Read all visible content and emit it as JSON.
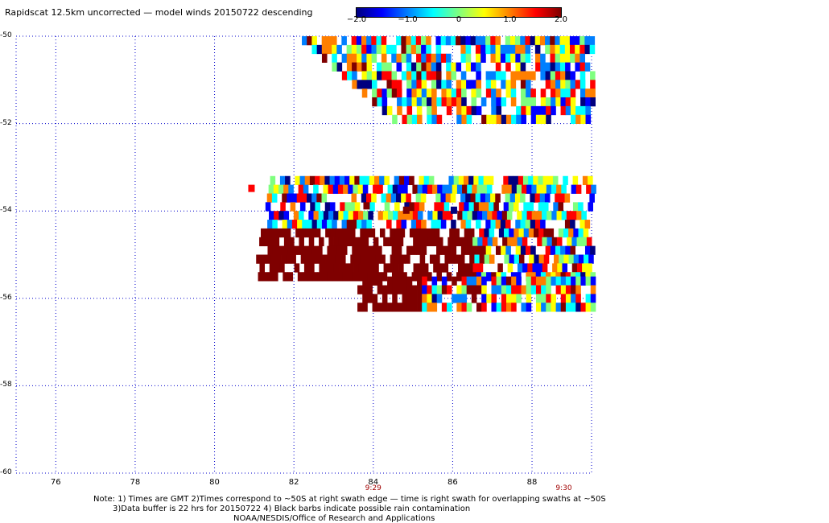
{
  "title": "Rapidscat 12.5km uncorrected — model winds 20150722 descending",
  "colorbar": {
    "ticks": [
      "−2.0",
      "−1.0",
      "0",
      "1.0",
      "2.0"
    ],
    "tick_values": [
      -2.0,
      -1.0,
      0,
      1.0,
      2.0
    ],
    "range": [
      -2.0,
      2.0
    ],
    "colors": [
      "#00007f",
      "#0000ff",
      "#007fff",
      "#00ffff",
      "#7fff7f",
      "#ffff00",
      "#ff7f00",
      "#ff0000",
      "#7f0000"
    ]
  },
  "axes": {
    "lat_labels": [
      "-50",
      "-52",
      "-54",
      "-56",
      "-58",
      "-60"
    ],
    "lat_values": [
      -50,
      -52,
      -54,
      -56,
      -58,
      -60
    ],
    "lon_labels": [
      "76",
      "78",
      "80",
      "82",
      "84",
      "86",
      "88"
    ],
    "lon_values": [
      76,
      78,
      80,
      82,
      84,
      86,
      88
    ],
    "grid": true,
    "grid_color": "#0000cc"
  },
  "time_labels": [
    {
      "text": "9:29",
      "lon": 84.0
    },
    {
      "text": "9:30",
      "lon": 88.8
    }
  ],
  "notes": {
    "line1": "Note: 1) Times are GMT 2)Times correspond to ~50S at right swath edge — time is right swath for overlapping swaths at ~50S",
    "line2": "3)Data buffer is 22 hrs for 20150722 4) Black barbs indicate possible rain contamination",
    "line3": "NOAA/NESDIS/Office of Research and Applications"
  },
  "chart_data": {
    "type": "heatmap",
    "x_range": [
      75.0,
      89.5
    ],
    "y_range": [
      -60.0,
      -50.0
    ],
    "cell_deg": [
      0.125,
      0.2
    ],
    "value_range": [
      -2.0,
      2.0
    ],
    "swaths": [
      {
        "lon_start": 82.2,
        "lon_end": 89.5,
        "lat_top": -50.0,
        "lat_bottom": -51.9,
        "slant": 0.6
      },
      {
        "lon_start": 81.4,
        "lon_end": 89.5,
        "lat_top": -53.2,
        "lat_bottom": -55.5,
        "slant": 0.3
      },
      {
        "lon_start": 83.6,
        "lon_end": 89.5,
        "lat_top": -55.5,
        "lat_bottom": -56.3,
        "slant": 0.0
      }
    ],
    "isolated_points": [
      {
        "lon": 80.85,
        "lat": -53.4,
        "value": 1.5
      },
      {
        "lon": 83.75,
        "lat": -53.8,
        "value": 2.0
      },
      {
        "lon": 84.75,
        "lat": -53.9,
        "value": 2.0
      },
      {
        "lon": 85.95,
        "lat": -53.9,
        "value": -2.0
      }
    ]
  }
}
